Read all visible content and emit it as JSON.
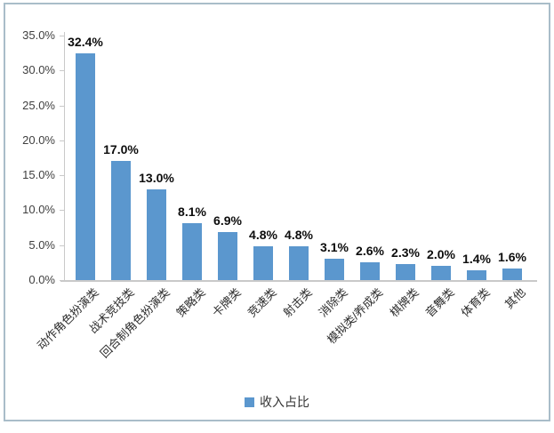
{
  "chart_data": {
    "type": "bar",
    "title": "",
    "categories": [
      "动作角色扮演类",
      "战术竞技类",
      "回合制角色扮演类",
      "策略类",
      "卡牌类",
      "竞速类",
      "射击类",
      "消除类",
      "模拟类/养成类",
      "棋牌类",
      "音舞类",
      "体育类",
      "其他"
    ],
    "values": [
      32.4,
      17.0,
      13.0,
      8.1,
      6.9,
      4.8,
      4.8,
      3.1,
      2.6,
      2.3,
      2.0,
      1.4,
      1.6
    ],
    "value_labels": [
      "32.4%",
      "17.0%",
      "13.0%",
      "8.1%",
      "6.9%",
      "4.8%",
      "4.8%",
      "3.1%",
      "2.6%",
      "2.3%",
      "2.0%",
      "1.4%",
      "1.6%"
    ],
    "y_ticks": [
      "35.0%",
      "30.0%",
      "25.0%",
      "20.0%",
      "15.0%",
      "10.0%",
      "5.0%",
      "0.0%"
    ],
    "ylim": [
      0,
      35
    ],
    "xlabel": "",
    "ylabel": "",
    "grid": false,
    "legend_position": "bottom",
    "legend": [
      {
        "label": "收入占比",
        "color": "#5B97CE"
      }
    ],
    "bar_color": "#5B97CE"
  },
  "colors": {
    "bar": "#5B97CE",
    "frame_border": "#A9BDC9",
    "axis": "#C9C9C9",
    "tick_text": "#3F3F3F",
    "data_label_text": "#0D0D0D",
    "category_text": "#2E2E2E",
    "background": "#FFFFFF"
  }
}
